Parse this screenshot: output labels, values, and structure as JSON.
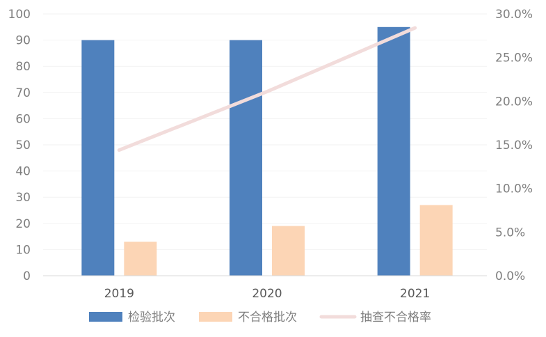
{
  "chart_data": {
    "type": "bar",
    "categories": [
      "2019",
      "2020",
      "2021"
    ],
    "series": [
      {
        "name": "检验批次",
        "kind": "bar",
        "axis": "left",
        "values": [
          90,
          90,
          95
        ],
        "color": "#4f81bd"
      },
      {
        "name": "不合格批次",
        "kind": "bar",
        "axis": "left",
        "values": [
          13,
          19,
          27
        ],
        "color": "#fcd5b5"
      },
      {
        "name": "抽查不合格率",
        "kind": "line",
        "axis": "right",
        "values": [
          0.144,
          0.211,
          0.284
        ],
        "color": "#f2dcdb"
      }
    ],
    "y_left": {
      "min": 0,
      "max": 100,
      "step": 10
    },
    "y_right": {
      "min": 0,
      "max": 0.3,
      "step": 0.05
    },
    "grid": true,
    "legend_position": "bottom"
  }
}
